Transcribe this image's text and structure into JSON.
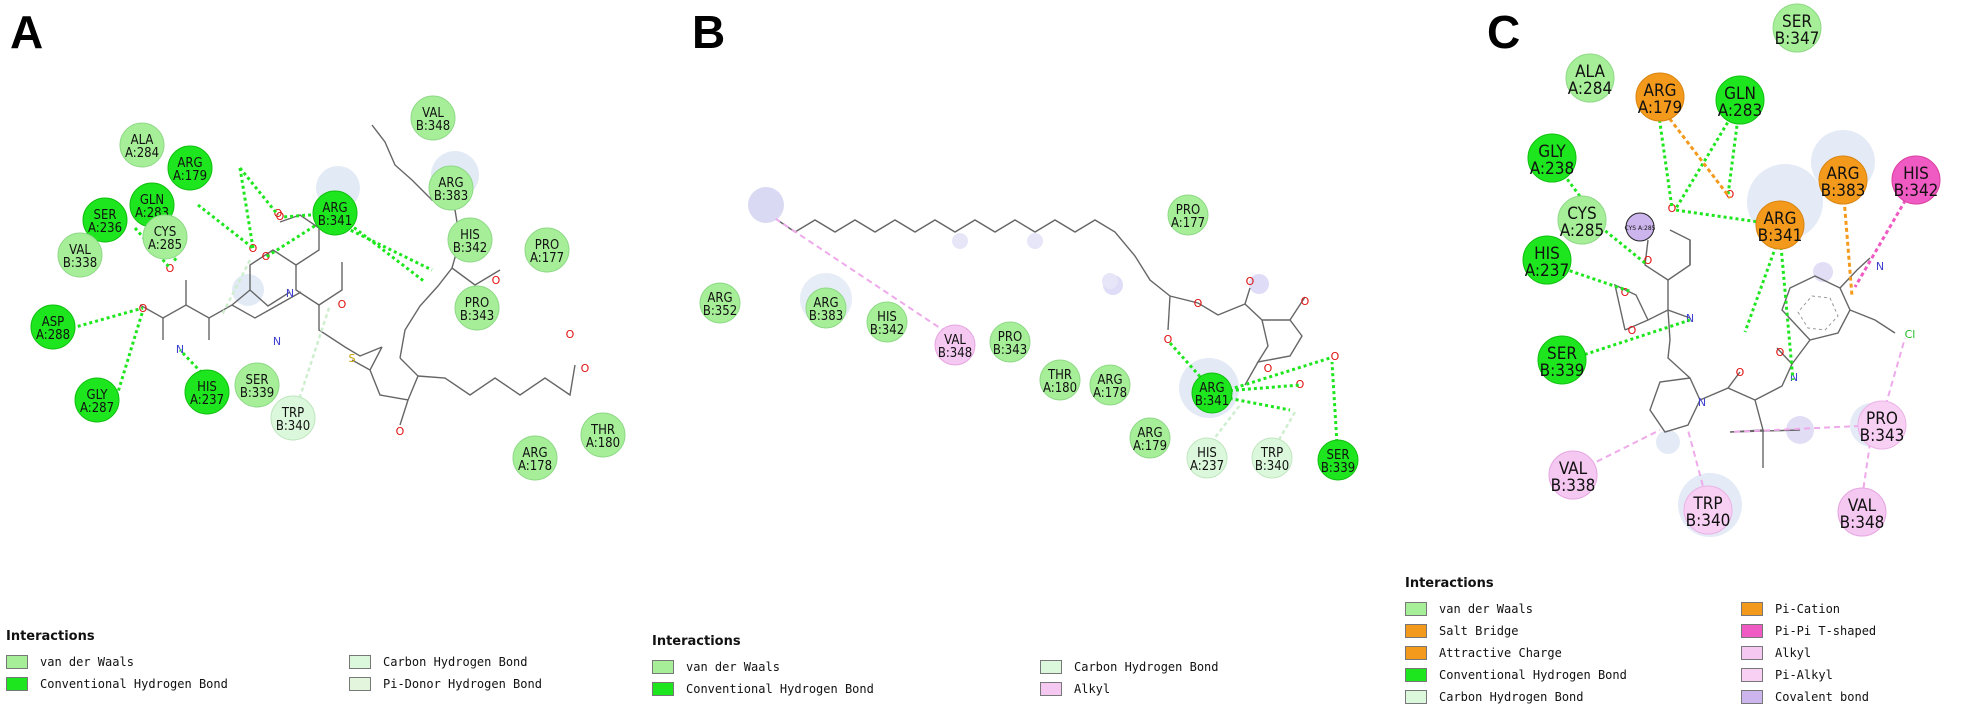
{
  "palette": {
    "vdw": "#a6ef98",
    "hbond": "#1ee61e",
    "chbond": "#dcf8dc",
    "pidonor": "#e3f6dd",
    "alkyl": "#f4c8f0",
    "pialkyl": "#f7d0f3",
    "pication": "#f39a1c",
    "saltbridge": "#f39a1c",
    "attractive": "#f39a1c",
    "pipi": "#ef5ac3",
    "covalent": "#ccb5ec",
    "bond": "#666666",
    "oxygen": "#e01010",
    "nitrogen": "#4040d0",
    "sulfur": "#c8a000",
    "chlorine": "#22bb22"
  },
  "panels": [
    {
      "label": "A",
      "residues": [
        {
          "id": "ala284",
          "name": "ALA",
          "num": "A:284",
          "type": "vdw"
        },
        {
          "id": "arg179",
          "name": "ARG",
          "num": "A:179",
          "type": "hbond"
        },
        {
          "id": "gln283",
          "name": "GLN",
          "num": "A:283",
          "type": "hbond"
        },
        {
          "id": "ser236",
          "name": "SER",
          "num": "A:236",
          "type": "hbond"
        },
        {
          "id": "cys285",
          "name": "CYS",
          "num": "A:285",
          "type": "vdw"
        },
        {
          "id": "val338",
          "name": "VAL",
          "num": "B:338",
          "type": "vdw"
        },
        {
          "id": "asp288",
          "name": "ASP",
          "num": "A:288",
          "type": "hbond"
        },
        {
          "id": "gly287",
          "name": "GLY",
          "num": "A:287",
          "type": "hbond"
        },
        {
          "id": "his237",
          "name": "HIS",
          "num": "A:237",
          "type": "hbond"
        },
        {
          "id": "ser339",
          "name": "SER",
          "num": "B:339",
          "type": "vdw"
        },
        {
          "id": "trp340",
          "name": "TRP",
          "num": "B:340",
          "type": "chbond"
        },
        {
          "id": "arg341",
          "name": "ARG",
          "num": "B:341",
          "type": "hbond"
        },
        {
          "id": "val348",
          "name": "VAL",
          "num": "B:348",
          "type": "vdw"
        },
        {
          "id": "arg383",
          "name": "ARG",
          "num": "B:383",
          "type": "vdw"
        },
        {
          "id": "his342",
          "name": "HIS",
          "num": "B:342",
          "type": "vdw"
        },
        {
          "id": "pro177",
          "name": "PRO",
          "num": "A:177",
          "type": "vdw"
        },
        {
          "id": "pro343",
          "name": "PRO",
          "num": "B:343",
          "type": "vdw"
        },
        {
          "id": "thr180",
          "name": "THR",
          "num": "A:180",
          "type": "vdw"
        },
        {
          "id": "arg178",
          "name": "ARG",
          "num": "A:178",
          "type": "vdw"
        }
      ],
      "legend": {
        "title": "Interactions",
        "items": [
          {
            "label": "van der Waals",
            "type": "vdw"
          },
          {
            "label": "Carbon Hydrogen Bond",
            "type": "chbond"
          },
          {
            "label": "Conventional Hydrogen Bond",
            "type": "hbond"
          },
          {
            "label": "Pi-Donor Hydrogen Bond",
            "type": "pidonor"
          }
        ]
      }
    },
    {
      "label": "B",
      "residues": [
        {
          "id": "pro177",
          "name": "PRO",
          "num": "A:177",
          "type": "vdw"
        },
        {
          "id": "arg352",
          "name": "ARG",
          "num": "B:352",
          "type": "vdw"
        },
        {
          "id": "arg383",
          "name": "ARG",
          "num": "B:383",
          "type": "vdw"
        },
        {
          "id": "his342",
          "name": "HIS",
          "num": "B:342",
          "type": "vdw"
        },
        {
          "id": "val348",
          "name": "VAL",
          "num": "B:348",
          "type": "alkyl"
        },
        {
          "id": "pro343",
          "name": "PRO",
          "num": "B:343",
          "type": "vdw"
        },
        {
          "id": "thr180",
          "name": "THR",
          "num": "A:180",
          "type": "vdw"
        },
        {
          "id": "arg178",
          "name": "ARG",
          "num": "A:178",
          "type": "vdw"
        },
        {
          "id": "arg179",
          "name": "ARG",
          "num": "A:179",
          "type": "vdw"
        },
        {
          "id": "arg341",
          "name": "ARG",
          "num": "B:341",
          "type": "hbond"
        },
        {
          "id": "his237",
          "name": "HIS",
          "num": "A:237",
          "type": "chbond"
        },
        {
          "id": "trp340",
          "name": "TRP",
          "num": "B:340",
          "type": "chbond"
        },
        {
          "id": "ser339",
          "name": "SER",
          "num": "B:339",
          "type": "hbond"
        }
      ],
      "legend": {
        "title": "Interactions",
        "items": [
          {
            "label": "van der Waals",
            "type": "vdw"
          },
          {
            "label": "Carbon Hydrogen Bond",
            "type": "chbond"
          },
          {
            "label": "Conventional Hydrogen Bond",
            "type": "hbond"
          },
          {
            "label": "Alkyl",
            "type": "alkyl"
          }
        ]
      }
    },
    {
      "label": "C",
      "residues": [
        {
          "id": "ser347",
          "name": "SER",
          "num": "B:347",
          "type": "vdw"
        },
        {
          "id": "ala284",
          "name": "ALA",
          "num": "A:284",
          "type": "vdw"
        },
        {
          "id": "arg179",
          "name": "ARG",
          "num": "A:179",
          "type": "pication"
        },
        {
          "id": "gln283",
          "name": "GLN",
          "num": "A:283",
          "type": "hbond"
        },
        {
          "id": "gly238",
          "name": "GLY",
          "num": "A:238",
          "type": "hbond"
        },
        {
          "id": "arg383",
          "name": "ARG",
          "num": "B:383",
          "type": "pication"
        },
        {
          "id": "his342",
          "name": "HIS",
          "num": "B:342",
          "type": "pipi"
        },
        {
          "id": "cys285",
          "name": "CYS",
          "num": "A:285",
          "type": "vdw"
        },
        {
          "id": "arg341",
          "name": "ARG",
          "num": "B:341",
          "type": "pication"
        },
        {
          "id": "his237",
          "name": "HIS",
          "num": "A:237",
          "type": "hbond"
        },
        {
          "id": "ser339",
          "name": "SER",
          "num": "B:339",
          "type": "hbond"
        },
        {
          "id": "pro343",
          "name": "PRO",
          "num": "B:343",
          "type": "pialkyl"
        },
        {
          "id": "val338",
          "name": "VAL",
          "num": "B:338",
          "type": "alkyl"
        },
        {
          "id": "trp340",
          "name": "TRP",
          "num": "B:340",
          "type": "pialkyl"
        },
        {
          "id": "val348",
          "name": "VAL",
          "num": "B:348",
          "type": "alkyl"
        }
      ],
      "covalent_label": "CYS A:285",
      "legend": {
        "title": "Interactions",
        "items": [
          {
            "label": "van der Waals",
            "type": "vdw"
          },
          {
            "label": "Pi-Cation",
            "type": "pication"
          },
          {
            "label": "Salt Bridge",
            "type": "saltbridge"
          },
          {
            "label": "Pi-Pi T-shaped",
            "type": "pipi"
          },
          {
            "label": "Attractive Charge",
            "type": "attractive"
          },
          {
            "label": "Alkyl",
            "type": "alkyl"
          },
          {
            "label": "Conventional Hydrogen Bond",
            "type": "hbond"
          },
          {
            "label": "Pi-Alkyl",
            "type": "pialkyl"
          },
          {
            "label": "Carbon Hydrogen Bond",
            "type": "chbond"
          },
          {
            "label": "Covalent bond",
            "type": "covalent"
          }
        ]
      }
    }
  ]
}
